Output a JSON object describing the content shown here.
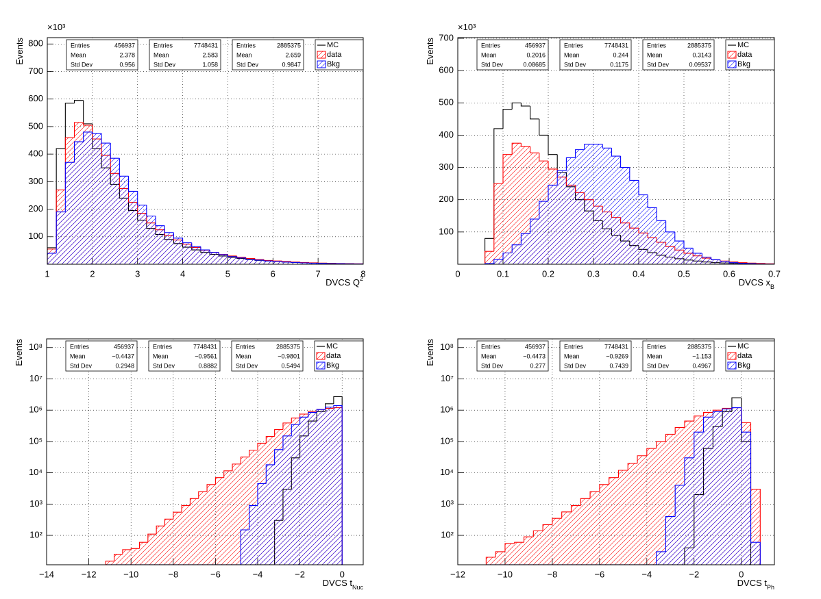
{
  "chart_data": [
    {
      "type": "histogram",
      "x_label": "DVCS Q",
      "x_label_sup": "2",
      "y_label": "Events",
      "y_multiplier": "×10³",
      "xlim": [
        1,
        8
      ],
      "ylim": [
        0,
        823
      ],
      "xticks": [
        1,
        2,
        3,
        4,
        5,
        6,
        7,
        8
      ],
      "yticks": [
        100,
        200,
        300,
        400,
        500,
        600,
        700,
        800
      ],
      "grid": true,
      "log_y": false,
      "bins": [
        1,
        1.2,
        1.4,
        1.6,
        1.8,
        2,
        2.2,
        2.4,
        2.6,
        2.8,
        3,
        3.2,
        3.4,
        3.6,
        3.8,
        4,
        4.2,
        4.4,
        4.6,
        4.8,
        5,
        5.2,
        5.4,
        5.6,
        5.8,
        6,
        6.2,
        6.4,
        6.6,
        6.8,
        7,
        7.2,
        7.4,
        7.6,
        7.8,
        8
      ],
      "series": [
        {
          "name": "MC",
          "color": "#000000",
          "fill_style": "none",
          "stats": [
            [
              "Entries",
              "456937"
            ],
            [
              "Mean",
              "2.378"
            ],
            [
              "Std Dev",
              "0.956"
            ]
          ],
          "values": [
            60,
            420,
            585,
            595,
            510,
            420,
            350,
            290,
            240,
            195,
            160,
            130,
            108,
            90,
            75,
            62,
            52,
            43,
            36,
            30,
            25,
            21,
            17,
            14,
            12,
            10,
            8,
            6.5,
            5.3,
            4.3,
            3.4,
            2.7,
            2.1,
            1.6,
            1.2
          ]
        },
        {
          "name": "data",
          "color": "#ff0000",
          "fill_style": "hatch",
          "stats": [
            [
              "Entries",
              "7748431"
            ],
            [
              "Mean",
              "2.583"
            ],
            [
              "Std Dev",
              "1.058"
            ]
          ],
          "values": [
            55,
            270,
            460,
            515,
            505,
            455,
            395,
            330,
            275,
            225,
            185,
            150,
            125,
            105,
            88,
            73,
            61,
            51,
            43,
            36,
            30,
            25,
            21,
            17,
            14,
            12,
            10,
            8,
            6.5,
            5.3,
            4.3,
            3.5,
            2.8,
            2.2,
            1.7
          ]
        },
        {
          "name": "Bkg",
          "color": "#0000ff",
          "fill_style": "hatch",
          "stats": [
            [
              "Entries",
              "2885375"
            ],
            [
              "Mean",
              "2.659"
            ],
            [
              "Std Dev",
              "0.9847"
            ]
          ],
          "values": [
            40,
            190,
            370,
            445,
            480,
            475,
            440,
            385,
            320,
            265,
            215,
            175,
            140,
            115,
            95,
            78,
            64,
            52,
            43,
            35,
            28,
            23,
            18,
            15,
            12,
            10,
            8,
            6.5,
            5,
            4,
            3.2,
            2.5,
            2,
            1.5,
            1.1
          ]
        }
      ]
    },
    {
      "type": "histogram",
      "x_label": "DVCS x",
      "x_label_sub": "B",
      "y_label": "Events",
      "y_multiplier": "×10³",
      "xlim": [
        0,
        0.7
      ],
      "ylim": [
        0,
        702
      ],
      "xticks": [
        0,
        0.1,
        0.2,
        0.3,
        0.4,
        0.5,
        0.6,
        0.7
      ],
      "yticks": [
        100,
        200,
        300,
        400,
        500,
        600,
        700
      ],
      "grid": true,
      "log_y": false,
      "bins": [
        0.06,
        0.08,
        0.1,
        0.12,
        0.14,
        0.16,
        0.18,
        0.2,
        0.22,
        0.24,
        0.26,
        0.28,
        0.3,
        0.32,
        0.34,
        0.36,
        0.38,
        0.4,
        0.42,
        0.44,
        0.46,
        0.48,
        0.5,
        0.52,
        0.54,
        0.56,
        0.58,
        0.6,
        0.62,
        0.64,
        0.66,
        0.68,
        0.7
      ],
      "series": [
        {
          "name": "MC",
          "color": "#000000",
          "fill_style": "none",
          "stats": [
            [
              "Entries",
              "456937"
            ],
            [
              "Mean",
              "0.2016"
            ],
            [
              "Std Dev",
              "0.08685"
            ]
          ],
          "values": [
            80,
            420,
            480,
            500,
            490,
            450,
            400,
            340,
            285,
            240,
            200,
            165,
            135,
            110,
            90,
            72,
            58,
            46,
            36,
            28,
            22,
            17,
            13,
            10,
            7,
            5,
            4,
            3,
            2,
            1.5,
            1,
            0.7
          ]
        },
        {
          "name": "data",
          "color": "#ff0000",
          "fill_style": "hatch",
          "stats": [
            [
              "Entries",
              "7748431"
            ],
            [
              "Mean",
              "0.244"
            ],
            [
              "Std Dev",
              "0.1175"
            ]
          ],
          "values": [
            40,
            250,
            340,
            375,
            365,
            345,
            320,
            295,
            270,
            245,
            222,
            200,
            180,
            162,
            145,
            128,
            112,
            97,
            82,
            68,
            55,
            44,
            34,
            26,
            19,
            14,
            10,
            7,
            5,
            3.5,
            2.5,
            1.5
          ]
        },
        {
          "name": "Bkg",
          "color": "#0000ff",
          "fill_style": "hatch",
          "stats": [
            [
              "Entries",
              "2885375"
            ],
            [
              "Mean",
              "0.3143"
            ],
            [
              "Std Dev",
              "0.09537"
            ]
          ],
          "values": [
            2,
            15,
            35,
            60,
            95,
            140,
            195,
            245,
            290,
            330,
            355,
            372,
            372,
            360,
            335,
            300,
            260,
            215,
            175,
            135,
            100,
            72,
            50,
            34,
            22,
            14,
            9,
            5,
            3,
            2,
            1,
            0.5
          ]
        }
      ]
    },
    {
      "type": "histogram",
      "x_label": "DVCS t",
      "x_label_sub": "Nuc",
      "y_label": "Events",
      "xlim": [
        -14,
        1
      ],
      "ylim": [
        11.5,
        190000000
      ],
      "xticks": [
        {
          "value": -14,
          "label": "−14"
        },
        {
          "value": -12,
          "label": "−12"
        },
        {
          "value": -10,
          "label": "−10"
        },
        {
          "value": -8,
          "label": "−8"
        },
        {
          "value": -6,
          "label": "−6"
        },
        {
          "value": -4,
          "label": "−4"
        },
        {
          "value": -2,
          "label": "−2"
        },
        0
      ],
      "yticks": [
        {
          "value": 100,
          "label": "10²"
        },
        {
          "value": 1000,
          "label": "10³"
        },
        {
          "value": 10000,
          "label": "10⁴"
        },
        {
          "value": 100000,
          "label": "10⁵"
        },
        {
          "value": 1000000,
          "label": "10⁶"
        },
        {
          "value": 10000000,
          "label": "10⁷"
        },
        {
          "value": 100000000,
          "label": "10⁸"
        }
      ],
      "grid": true,
      "log_y": true,
      "bins": [
        -11.2,
        -10.8,
        -10.4,
        -10,
        -9.6,
        -9.2,
        -8.8,
        -8.4,
        -8,
        -7.6,
        -7.2,
        -6.8,
        -6.4,
        -6,
        -5.6,
        -5.2,
        -4.8,
        -4.4,
        -4,
        -3.6,
        -3.2,
        -2.8,
        -2.4,
        -2,
        -1.6,
        -1.2,
        -0.8,
        -0.4,
        0
      ],
      "series": [
        {
          "name": "MC",
          "color": "#000000",
          "fill_style": "none",
          "stats": [
            [
              "Entries",
              "456937"
            ],
            [
              "Mean",
              "−0.4437"
            ],
            [
              "Std Dev",
              "0.2948"
            ]
          ],
          "values": [
            0,
            0,
            0,
            0,
            0,
            0,
            0,
            0,
            0,
            0,
            0,
            0,
            0,
            0,
            0,
            0,
            0,
            0,
            0,
            0,
            300,
            3000,
            30000,
            150000,
            450000,
            900000,
            1600000,
            2700000
          ]
        },
        {
          "name": "data",
          "color": "#ff0000",
          "fill_style": "hatch",
          "stats": [
            [
              "Entries",
              "7748431"
            ],
            [
              "Mean",
              "−0.9561"
            ],
            [
              "Std Dev",
              "0.8882"
            ]
          ],
          "values": [
            15,
            25,
            35,
            38,
            60,
            110,
            200,
            330,
            550,
            900,
            1500,
            2500,
            4200,
            7000,
            11500,
            19000,
            32000,
            53000,
            88000,
            145000,
            240000,
            390000,
            560000,
            750000,
            920000,
            1050000,
            1150000,
            1200000
          ]
        },
        {
          "name": "Bkg",
          "color": "#0000ff",
          "fill_style": "hatch",
          "stats": [
            [
              "Entries",
              "2885375"
            ],
            [
              "Mean",
              "−0.9801"
            ],
            [
              "Std Dev",
              "0.5494"
            ]
          ],
          "values": [
            0,
            0,
            0,
            0,
            0,
            0,
            0,
            0,
            0,
            0,
            0,
            0,
            0,
            0,
            0,
            0,
            150,
            900,
            4500,
            18000,
            55000,
            150000,
            350000,
            600000,
            850000,
            1050000,
            1250000,
            1400000
          ]
        }
      ]
    },
    {
      "type": "histogram",
      "x_label": "DVCS t",
      "x_label_sub": "Ph",
      "y_label": "Events",
      "xlim": [
        -12,
        1.4
      ],
      "ylim": [
        11.5,
        190000000
      ],
      "xticks": [
        {
          "value": -12,
          "label": "−12"
        },
        {
          "value": -10,
          "label": "−10"
        },
        {
          "value": -8,
          "label": "−8"
        },
        {
          "value": -6,
          "label": "−6"
        },
        {
          "value": -4,
          "label": "−4"
        },
        {
          "value": -2,
          "label": "−2"
        },
        0
      ],
      "yticks": [
        {
          "value": 100,
          "label": "10²"
        },
        {
          "value": 1000,
          "label": "10³"
        },
        {
          "value": 10000,
          "label": "10⁴"
        },
        {
          "value": 100000,
          "label": "10⁵"
        },
        {
          "value": 1000000,
          "label": "10⁶"
        },
        {
          "value": 10000000,
          "label": "10⁷"
        },
        {
          "value": 100000000,
          "label": "10⁸"
        }
      ],
      "grid": true,
      "log_y": true,
      "bins": [
        -10.8,
        -10.4,
        -10,
        -9.6,
        -9.2,
        -8.8,
        -8.4,
        -8,
        -7.6,
        -7.2,
        -6.8,
        -6.4,
        -6,
        -5.6,
        -5.2,
        -4.8,
        -4.4,
        -4,
        -3.6,
        -3.2,
        -2.8,
        -2.4,
        -2,
        -1.6,
        -1.2,
        -0.8,
        -0.4,
        0,
        0.4,
        0.8
      ],
      "series": [
        {
          "name": "MC",
          "color": "#000000",
          "fill_style": "none",
          "stats": [
            [
              "Entries",
              "456937"
            ],
            [
              "Mean",
              "−0.4473"
            ],
            [
              "Std Dev",
              "0.277"
            ]
          ],
          "values": [
            0,
            0,
            0,
            0,
            0,
            0,
            0,
            0,
            0,
            0,
            0,
            0,
            0,
            0,
            0,
            0,
            0,
            0,
            0,
            0,
            0,
            40,
            2000,
            60000,
            300000,
            900000,
            2500000,
            100000,
            0
          ]
        },
        {
          "name": "data",
          "color": "#ff0000",
          "fill_style": "hatch",
          "stats": [
            [
              "Entries",
              "7748431"
            ],
            [
              "Mean",
              "−0.9269"
            ],
            [
              "Std Dev",
              "0.7439"
            ]
          ],
          "values": [
            20,
            30,
            55,
            60,
            90,
            140,
            220,
            350,
            560,
            900,
            1500,
            2500,
            4200,
            7000,
            12000,
            20000,
            35000,
            60000,
            100000,
            170000,
            280000,
            450000,
            650000,
            850000,
            1000000,
            1150000,
            1200000,
            400000,
            3000
          ]
        },
        {
          "name": "Bkg",
          "color": "#0000ff",
          "fill_style": "hatch",
          "stats": [
            [
              "Entries",
              "2885375"
            ],
            [
              "Mean",
              "−1.153"
            ],
            [
              "Std Dev",
              "0.4967"
            ]
          ],
          "values": [
            0,
            0,
            0,
            0,
            0,
            0,
            0,
            0,
            0,
            0,
            0,
            0,
            0,
            0,
            0,
            0,
            0,
            0,
            30,
            400,
            4000,
            30000,
            200000,
            600000,
            900000,
            1100000,
            1200000,
            200000,
            60
          ]
        }
      ]
    }
  ]
}
